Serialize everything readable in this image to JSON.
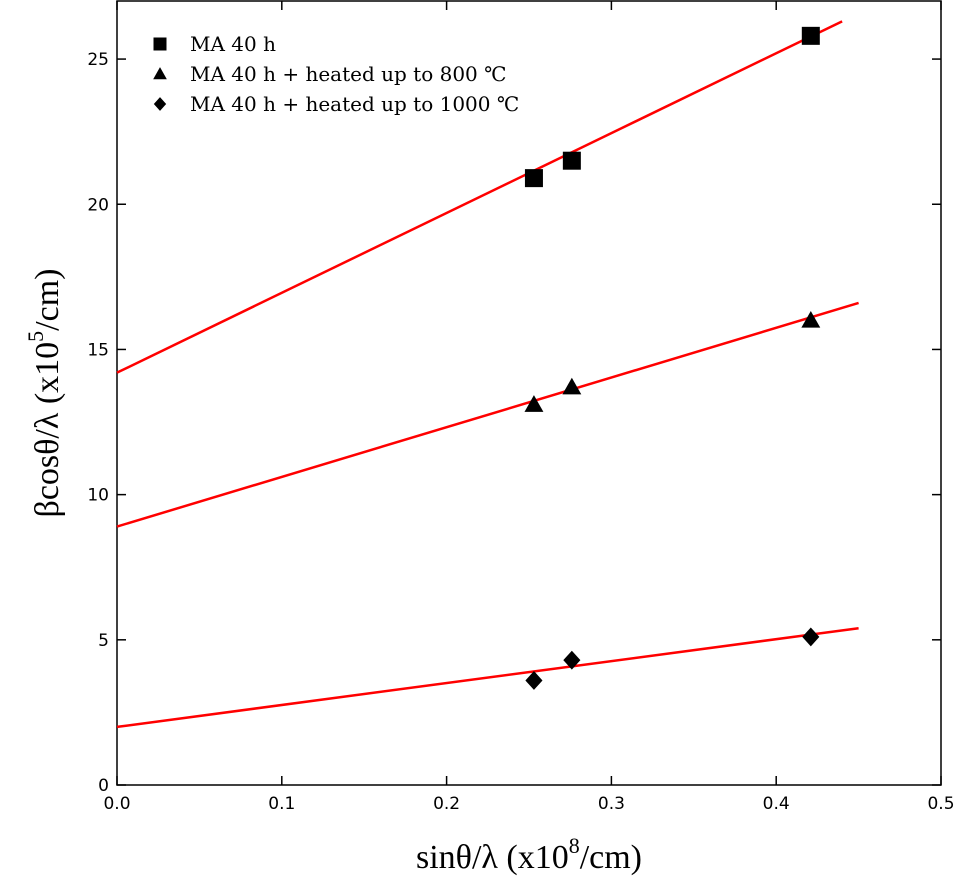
{
  "chart_data": {
    "type": "scatter",
    "title": "",
    "xlabel": {
      "text": "sinθ/λ  (x10",
      "exponent": "8",
      "suffix": "/cm)"
    },
    "ylabel": {
      "text": "βcosθ/λ  (x10",
      "exponent": "5",
      "suffix": "/cm)"
    },
    "xlim": [
      0.0,
      0.5
    ],
    "ylim": [
      0,
      27
    ],
    "xticks": [
      0.0,
      0.1,
      0.2,
      0.3,
      0.4,
      0.5
    ],
    "xtick_labels": [
      "0.0",
      "0.1",
      "0.2",
      "0.3",
      "0.4",
      "0.5"
    ],
    "yticks": [
      0,
      5,
      10,
      15,
      20,
      25
    ],
    "ytick_labels": [
      "0",
      "5",
      "10",
      "15",
      "20",
      "25"
    ],
    "grid": false,
    "legend_position": "top-left",
    "fit_line_color": "#ff0000",
    "marker_color": "#000000",
    "series": [
      {
        "name": "MA 40 h",
        "marker": "square",
        "x": [
          0.253,
          0.276,
          0.421
        ],
        "y": [
          20.9,
          21.5,
          25.8
        ],
        "fit": {
          "x": [
            0.0,
            0.44
          ],
          "y": [
            14.2,
            26.3
          ]
        }
      },
      {
        "name": "MA 40 h + heated up to 800 ℃",
        "marker": "triangle",
        "x": [
          0.253,
          0.276,
          0.421
        ],
        "y": [
          13.1,
          13.7,
          16.0
        ],
        "fit": {
          "x": [
            0.0,
            0.45
          ],
          "y": [
            8.9,
            16.6
          ]
        }
      },
      {
        "name": "MA 40 h + heated up to 1000 ℃",
        "marker": "diamond",
        "x": [
          0.253,
          0.276,
          0.421
        ],
        "y": [
          3.6,
          4.3,
          5.1
        ],
        "fit": {
          "x": [
            0.0,
            0.45
          ],
          "y": [
            2.0,
            5.4
          ]
        }
      }
    ]
  }
}
